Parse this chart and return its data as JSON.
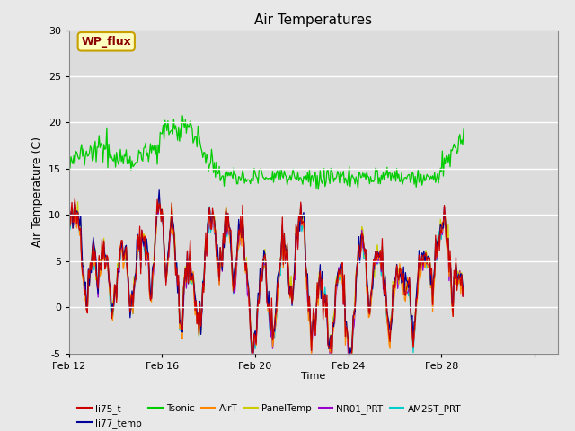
{
  "title": "Air Temperatures",
  "xlabel": "Time",
  "ylabel": "Air Temperature (C)",
  "ylim": [
    -5,
    30
  ],
  "xlim_min": 0,
  "xlim_max": 504,
  "xtick_positions": [
    0,
    96,
    192,
    288,
    384,
    480
  ],
  "xtick_labels": [
    "Feb 12",
    "Feb 16",
    "Feb 20",
    "Feb 24",
    "Feb 28",
    ""
  ],
  "ytick_positions": [
    -5,
    0,
    5,
    10,
    15,
    20,
    25,
    30
  ],
  "ytick_labels": [
    "-5",
    "0",
    "5",
    "10",
    "15",
    "20",
    "25",
    "30"
  ],
  "annotation_text": "WP_flux",
  "annotation_color": "#8B0000",
  "annotation_bg": "#FFFFC0",
  "annotation_border": "#C8A000",
  "series_colors": {
    "li75_t": "#CC0000",
    "li77_temp": "#000099",
    "Tsonic": "#00CC00",
    "AirT": "#FF8800",
    "PanelTemp": "#CCCC00",
    "NR01_PRT": "#9900CC",
    "AM25T_PRT": "#00CCCC"
  },
  "bg_color": "#E8E8E8",
  "plot_bg": "#DCDCDC",
  "grid_color": "#FFFFFF",
  "seed": 42
}
